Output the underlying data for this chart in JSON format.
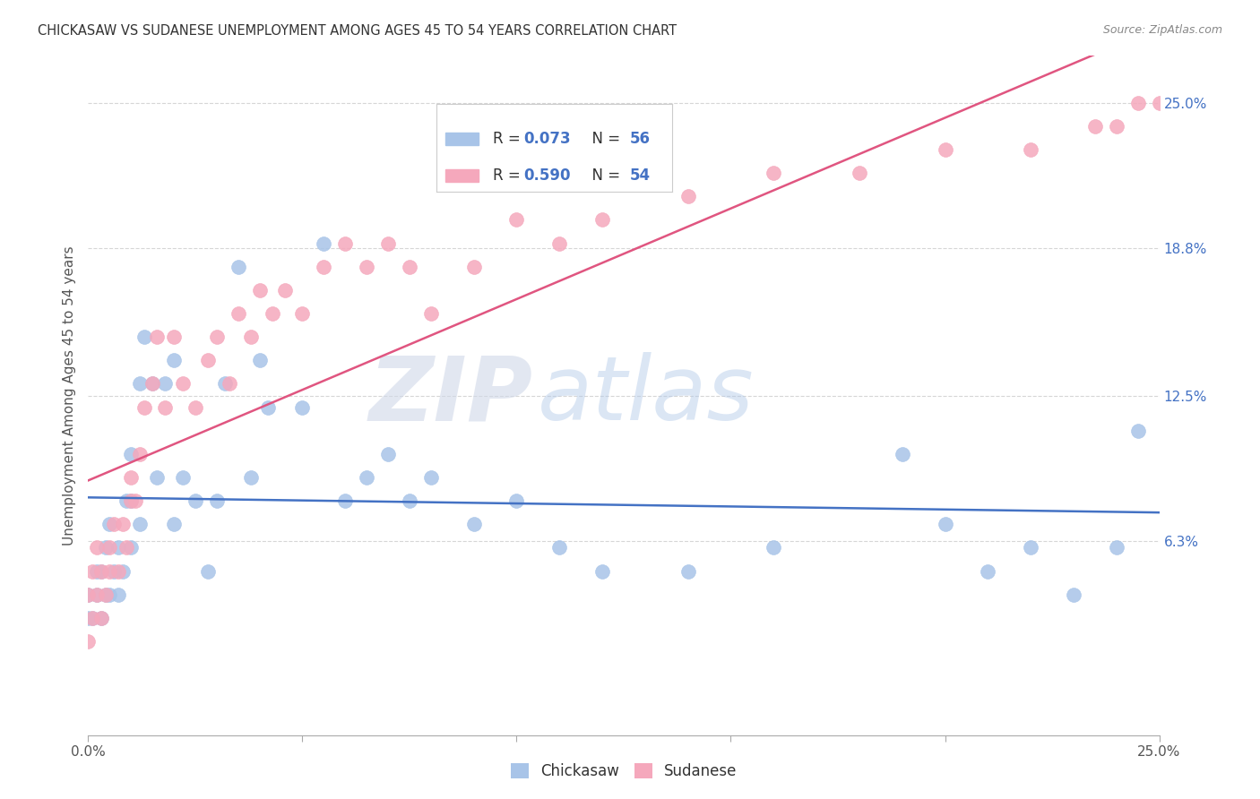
{
  "title": "CHICKASAW VS SUDANESE UNEMPLOYMENT AMONG AGES 45 TO 54 YEARS CORRELATION CHART",
  "source": "Source: ZipAtlas.com",
  "ylabel": "Unemployment Among Ages 45 to 54 years",
  "ytick_labels": [
    "25.0%",
    "18.8%",
    "12.5%",
    "6.3%"
  ],
  "ytick_values": [
    0.25,
    0.188,
    0.125,
    0.063
  ],
  "xlim": [
    0.0,
    0.25
  ],
  "ylim": [
    -0.02,
    0.27
  ],
  "chickasaw_color": "#a8c4e8",
  "sudanese_color": "#f5a8bc",
  "chickasaw_line_color": "#4472c4",
  "sudanese_line_color": "#e05580",
  "chickasaw_R": 0.073,
  "chickasaw_N": 56,
  "sudanese_R": 0.59,
  "sudanese_N": 54,
  "watermark_zip": "ZIP",
  "watermark_atlas": "atlas",
  "chickasaw_x": [
    0.0,
    0.0,
    0.001,
    0.002,
    0.002,
    0.003,
    0.003,
    0.004,
    0.004,
    0.005,
    0.005,
    0.006,
    0.007,
    0.007,
    0.008,
    0.009,
    0.01,
    0.01,
    0.01,
    0.012,
    0.012,
    0.013,
    0.015,
    0.016,
    0.018,
    0.02,
    0.02,
    0.022,
    0.025,
    0.028,
    0.03,
    0.032,
    0.035,
    0.038,
    0.04,
    0.042,
    0.05,
    0.055,
    0.06,
    0.065,
    0.07,
    0.075,
    0.08,
    0.09,
    0.1,
    0.11,
    0.12,
    0.14,
    0.16,
    0.19,
    0.2,
    0.21,
    0.22,
    0.23,
    0.24,
    0.245
  ],
  "chickasaw_y": [
    0.03,
    0.04,
    0.03,
    0.04,
    0.05,
    0.03,
    0.05,
    0.04,
    0.06,
    0.04,
    0.07,
    0.05,
    0.06,
    0.04,
    0.05,
    0.08,
    0.06,
    0.08,
    0.1,
    0.07,
    0.13,
    0.15,
    0.13,
    0.09,
    0.13,
    0.14,
    0.07,
    0.09,
    0.08,
    0.05,
    0.08,
    0.13,
    0.18,
    0.09,
    0.14,
    0.12,
    0.12,
    0.19,
    0.08,
    0.09,
    0.1,
    0.08,
    0.09,
    0.07,
    0.08,
    0.06,
    0.05,
    0.05,
    0.06,
    0.1,
    0.07,
    0.05,
    0.06,
    0.04,
    0.06,
    0.11
  ],
  "sudanese_x": [
    0.0,
    0.0,
    0.001,
    0.001,
    0.002,
    0.002,
    0.003,
    0.003,
    0.004,
    0.005,
    0.005,
    0.006,
    0.007,
    0.008,
    0.009,
    0.01,
    0.01,
    0.011,
    0.012,
    0.013,
    0.015,
    0.016,
    0.018,
    0.02,
    0.022,
    0.025,
    0.028,
    0.03,
    0.033,
    0.035,
    0.038,
    0.04,
    0.043,
    0.046,
    0.05,
    0.055,
    0.06,
    0.065,
    0.07,
    0.075,
    0.08,
    0.09,
    0.1,
    0.11,
    0.12,
    0.14,
    0.16,
    0.18,
    0.2,
    0.22,
    0.235,
    0.24,
    0.245,
    0.25
  ],
  "sudanese_y": [
    0.02,
    0.04,
    0.03,
    0.05,
    0.04,
    0.06,
    0.03,
    0.05,
    0.04,
    0.05,
    0.06,
    0.07,
    0.05,
    0.07,
    0.06,
    0.08,
    0.09,
    0.08,
    0.1,
    0.12,
    0.13,
    0.15,
    0.12,
    0.15,
    0.13,
    0.12,
    0.14,
    0.15,
    0.13,
    0.16,
    0.15,
    0.17,
    0.16,
    0.17,
    0.16,
    0.18,
    0.19,
    0.18,
    0.19,
    0.18,
    0.16,
    0.18,
    0.2,
    0.19,
    0.2,
    0.21,
    0.22,
    0.22,
    0.23,
    0.23,
    0.24,
    0.24,
    0.25,
    0.25
  ]
}
